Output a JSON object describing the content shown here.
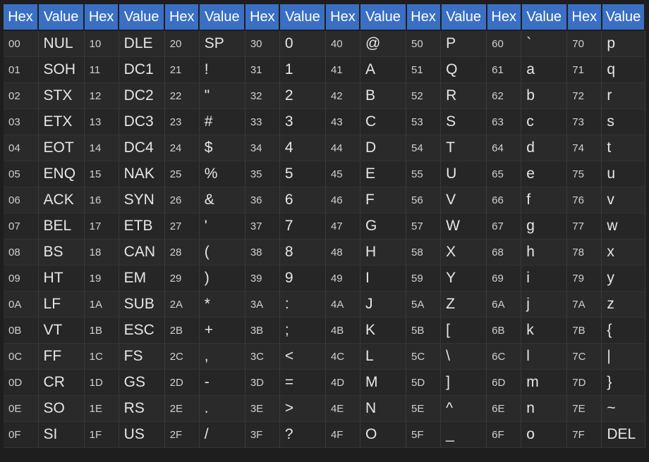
{
  "header": {
    "hex_label": "Hex",
    "value_label": "Value"
  },
  "rows": [
    [
      [
        "00",
        "NUL"
      ],
      [
        "10",
        "DLE"
      ],
      [
        "20",
        "SP"
      ],
      [
        "30",
        "0"
      ],
      [
        "40",
        "@"
      ],
      [
        "50",
        "P"
      ],
      [
        "60",
        "`"
      ],
      [
        "70",
        "p"
      ]
    ],
    [
      [
        "01",
        "SOH"
      ],
      [
        "11",
        "DC1"
      ],
      [
        "21",
        "!"
      ],
      [
        "31",
        "1"
      ],
      [
        "41",
        "A"
      ],
      [
        "51",
        "Q"
      ],
      [
        "61",
        "a"
      ],
      [
        "71",
        "q"
      ]
    ],
    [
      [
        "02",
        "STX"
      ],
      [
        "12",
        "DC2"
      ],
      [
        "22",
        "\""
      ],
      [
        "32",
        "2"
      ],
      [
        "42",
        "B"
      ],
      [
        "52",
        "R"
      ],
      [
        "62",
        "b"
      ],
      [
        "72",
        "r"
      ]
    ],
    [
      [
        "03",
        "ETX"
      ],
      [
        "13",
        "DC3"
      ],
      [
        "23",
        "#"
      ],
      [
        "33",
        "3"
      ],
      [
        "43",
        "C"
      ],
      [
        "53",
        "S"
      ],
      [
        "63",
        "c"
      ],
      [
        "73",
        "s"
      ]
    ],
    [
      [
        "04",
        "EOT"
      ],
      [
        "14",
        "DC4"
      ],
      [
        "24",
        "$"
      ],
      [
        "34",
        "4"
      ],
      [
        "44",
        "D"
      ],
      [
        "54",
        "T"
      ],
      [
        "64",
        "d"
      ],
      [
        "74",
        "t"
      ]
    ],
    [
      [
        "05",
        "ENQ"
      ],
      [
        "15",
        "NAK"
      ],
      [
        "25",
        "%"
      ],
      [
        "35",
        "5"
      ],
      [
        "45",
        "E"
      ],
      [
        "55",
        "U"
      ],
      [
        "65",
        "e"
      ],
      [
        "75",
        "u"
      ]
    ],
    [
      [
        "06",
        "ACK"
      ],
      [
        "16",
        "SYN"
      ],
      [
        "26",
        "&"
      ],
      [
        "36",
        "6"
      ],
      [
        "46",
        "F"
      ],
      [
        "56",
        "V"
      ],
      [
        "66",
        "f"
      ],
      [
        "76",
        "v"
      ]
    ],
    [
      [
        "07",
        "BEL"
      ],
      [
        "17",
        "ETB"
      ],
      [
        "27",
        "'"
      ],
      [
        "37",
        "7"
      ],
      [
        "47",
        "G"
      ],
      [
        "57",
        "W"
      ],
      [
        "67",
        "g"
      ],
      [
        "77",
        "w"
      ]
    ],
    [
      [
        "08",
        "BS"
      ],
      [
        "18",
        "CAN"
      ],
      [
        "28",
        "("
      ],
      [
        "38",
        "8"
      ],
      [
        "48",
        "H"
      ],
      [
        "58",
        "X"
      ],
      [
        "68",
        "h"
      ],
      [
        "78",
        "x"
      ]
    ],
    [
      [
        "09",
        "HT"
      ],
      [
        "19",
        "EM"
      ],
      [
        "29",
        ")"
      ],
      [
        "39",
        "9"
      ],
      [
        "49",
        "I"
      ],
      [
        "59",
        "Y"
      ],
      [
        "69",
        "i"
      ],
      [
        "79",
        "y"
      ]
    ],
    [
      [
        "0A",
        "LF"
      ],
      [
        "1A",
        "SUB"
      ],
      [
        "2A",
        "*"
      ],
      [
        "3A",
        ":"
      ],
      [
        "4A",
        "J"
      ],
      [
        "5A",
        "Z"
      ],
      [
        "6A",
        "j"
      ],
      [
        "7A",
        "z"
      ]
    ],
    [
      [
        "0B",
        "VT"
      ],
      [
        "1B",
        "ESC"
      ],
      [
        "2B",
        "+"
      ],
      [
        "3B",
        ";"
      ],
      [
        "4B",
        "K"
      ],
      [
        "5B",
        "["
      ],
      [
        "6B",
        "k"
      ],
      [
        "7B",
        "{"
      ]
    ],
    [
      [
        "0C",
        "FF"
      ],
      [
        "1C",
        "FS"
      ],
      [
        "2C",
        ","
      ],
      [
        "3C",
        "<"
      ],
      [
        "4C",
        "L"
      ],
      [
        "5C",
        "\\"
      ],
      [
        "6C",
        "l"
      ],
      [
        "7C",
        "|"
      ]
    ],
    [
      [
        "0D",
        "CR"
      ],
      [
        "1D",
        "GS"
      ],
      [
        "2D",
        "-"
      ],
      [
        "3D",
        "="
      ],
      [
        "4D",
        "M"
      ],
      [
        "5D",
        "]"
      ],
      [
        "6D",
        "m"
      ],
      [
        "7D",
        "}"
      ]
    ],
    [
      [
        "0E",
        "SO"
      ],
      [
        "1E",
        "RS"
      ],
      [
        "2E",
        "."
      ],
      [
        "3E",
        ">"
      ],
      [
        "4E",
        "N"
      ],
      [
        "5E",
        "^"
      ],
      [
        "6E",
        "n"
      ],
      [
        "7E",
        "~"
      ]
    ],
    [
      [
        "0F",
        "SI"
      ],
      [
        "1F",
        "US"
      ],
      [
        "2F",
        "/"
      ],
      [
        "3F",
        "?"
      ],
      [
        "4F",
        "O"
      ],
      [
        "5F",
        "_"
      ],
      [
        "6F",
        "o"
      ],
      [
        "7F",
        "DEL"
      ]
    ]
  ]
}
